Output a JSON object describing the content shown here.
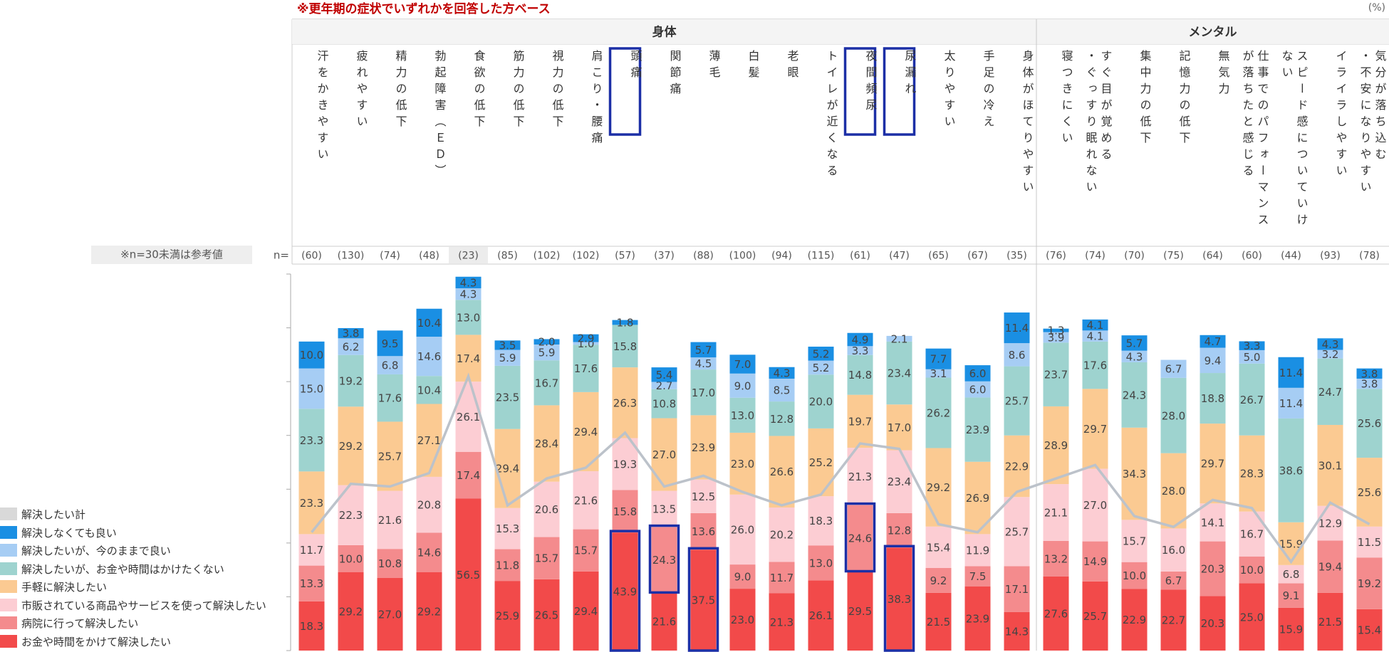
{
  "chart_data": {
    "type": "stacked_bar",
    "note": "※更年期の症状でいずれかを回答した方ベース",
    "unit": "(%)",
    "n_note": "※n=30未満は参考値",
    "n_prefix": "n=",
    "groups": [
      {
        "label": "身体",
        "categories": [
          "汗をかきやすい",
          "疲れやすい",
          "精力の低下",
          "勃起障害（ＥＤ）",
          "食欲の低下",
          "筋力の低下",
          "視力の低下",
          "肩こり・腰痛",
          "頭痛",
          "関節痛",
          "薄毛",
          "白髪",
          "老眼",
          "トイレが近くなる",
          "夜間頻尿",
          "尿漏れ",
          "太りやすい",
          "手足の冷え",
          "身体がほてりやすい"
        ],
        "n_labels": [
          "(60)",
          "(130)",
          "(74)",
          "(48)",
          "(23)",
          "(85)",
          "(102)",
          "(102)",
          "(57)",
          "(37)",
          "(88)",
          "(100)",
          "(94)",
          "(115)",
          "(61)",
          "(47)",
          "(65)",
          "(67)",
          "(35)"
        ]
      },
      {
        "label": "メンタル",
        "categories": [
          "寝つきにくい",
          "すぐ目が覚める・ぐっすり眠れない",
          "集中力の低下",
          "記憶力の低下",
          "無気力",
          "仕事でのパフォーマンスが落ちたと感じる",
          "スピード感についていけない",
          "イライラしやすい",
          "気分が落ち込む・不安になりやすい"
        ],
        "n_labels": [
          "(76)",
          "(74)",
          "(70)",
          "(75)",
          "(64)",
          "(60)",
          "(44)",
          "(93)",
          "(78)"
        ]
      }
    ],
    "series": [
      {
        "name": "お金や時間をかけて解決したい",
        "color": "#f24a4a",
        "values": [
          18.3,
          29.2,
          27.0,
          29.2,
          56.5,
          25.9,
          26.5,
          29.4,
          43.9,
          21.6,
          37.5,
          23.0,
          21.3,
          26.1,
          29.5,
          38.3,
          21.5,
          23.9,
          14.3,
          27.6,
          25.7,
          22.9,
          22.7,
          20.3,
          25.0,
          15.9,
          21.5,
          15.4
        ],
        "value_labels": [
          "18.3",
          "29.2",
          "27.0",
          "29.2",
          "56.5",
          "25.9",
          "26.5",
          "29.4",
          "43.9",
          "21.6",
          "37.5",
          "23.0",
          "21.3",
          "26.1",
          "29.5",
          "38.3",
          "21.5",
          "23.9",
          "14.3",
          "27.6",
          "25.7",
          "22.9",
          "22.7",
          "20.3",
          "25.0",
          "15.9",
          "21.5",
          "15.4"
        ]
      },
      {
        "name": "病院に行って解決したい",
        "color": "#f48b8d",
        "values": [
          13.3,
          10.0,
          10.8,
          14.6,
          17.4,
          11.8,
          15.7,
          15.7,
          15.8,
          24.3,
          13.6,
          9.0,
          11.7,
          13.0,
          24.6,
          12.8,
          9.2,
          7.5,
          17.1,
          13.2,
          14.9,
          10.0,
          6.7,
          20.3,
          10.0,
          9.1,
          19.4,
          19.2
        ],
        "value_labels": [
          "13.3",
          "10.0",
          "10.8",
          "14.6",
          "17.4",
          "11.8",
          "15.7",
          "15.7",
          "15.8",
          "24.3",
          "13.6",
          "9.0",
          "11.7",
          "13.0",
          "24.6",
          "12.8",
          "9.2",
          "7.5",
          "17.1",
          "13.2",
          "14.9",
          "10.0",
          "6.7",
          "20.3",
          "10.0",
          "9.1",
          "19.4",
          "19.2"
        ]
      },
      {
        "name": "市販されている商品やサービスを使って解決したい",
        "color": "#fccdd3",
        "values": [
          11.7,
          22.3,
          21.6,
          20.8,
          26.1,
          15.3,
          20.6,
          21.6,
          19.3,
          13.5,
          12.5,
          26.0,
          20.2,
          18.3,
          21.3,
          23.4,
          15.4,
          11.9,
          25.7,
          21.1,
          27.0,
          15.7,
          16.0,
          14.1,
          16.7,
          6.8,
          12.9,
          11.5
        ],
        "value_labels": [
          "11.7",
          "22.3",
          "21.6",
          "20.8",
          "26.1",
          "15.3",
          "20.6",
          "21.6",
          "19.3",
          "13.5",
          "12.5",
          "26.0",
          "20.2",
          "18.3",
          "21.3",
          "23.4",
          "15.4",
          "11.9",
          "25.7",
          "21.1",
          "27.0",
          "15.7",
          "16.0",
          "14.1",
          "16.7",
          "6.8",
          "12.9",
          "11.5"
        ]
      },
      {
        "name": "手軽に解決したい",
        "color": "#fbca92",
        "values": [
          23.3,
          29.2,
          25.7,
          27.1,
          17.4,
          29.4,
          28.4,
          29.4,
          26.3,
          27.0,
          23.9,
          23.0,
          26.6,
          25.2,
          19.7,
          17.0,
          29.2,
          26.9,
          22.9,
          28.9,
          29.7,
          34.3,
          28.0,
          29.7,
          28.3,
          15.9,
          30.1,
          25.6
        ],
        "value_labels": [
          "23.3",
          "29.2",
          "25.7",
          "27.1",
          "17.4",
          "29.4",
          "28.4",
          "29.4",
          "26.3",
          "27.0",
          "23.9",
          "23.0",
          "26.6",
          "25.2",
          "19.7",
          "17.0",
          "29.2",
          "26.9",
          "22.9",
          "28.9",
          "29.7",
          "34.3",
          "28.0",
          "29.7",
          "28.3",
          "15.9",
          "30.1",
          "25.6"
        ]
      },
      {
        "name": "解決したいが、お金や時間はかけたくない",
        "color": "#9ed3cf",
        "values": [
          23.3,
          19.2,
          17.6,
          10.4,
          13.0,
          23.5,
          16.7,
          17.6,
          15.8,
          10.8,
          17.0,
          13.0,
          12.8,
          20.0,
          14.8,
          23.4,
          26.2,
          23.9,
          25.7,
          23.7,
          17.6,
          24.3,
          28.0,
          18.8,
          26.7,
          38.6,
          24.7,
          25.6
        ],
        "value_labels": [
          "23.3",
          "19.2",
          "17.6",
          "10.4",
          "13.0",
          "23.5",
          "16.7",
          "17.6",
          "15.8",
          "10.8",
          "17.0",
          "13.0",
          "12.8",
          "20.0",
          "14.8",
          "23.4",
          "26.2",
          "23.9",
          "25.7",
          "23.7",
          "17.6",
          "24.3",
          "28.0",
          "18.8",
          "26.7",
          "38.6",
          "24.7",
          "25.6"
        ]
      },
      {
        "name": "解決したいが、今のままで良い",
        "color": "#a6cdf4",
        "values": [
          15.0,
          6.2,
          6.8,
          14.6,
          4.3,
          5.9,
          5.9,
          1.0,
          null,
          2.7,
          4.5,
          9.0,
          8.5,
          5.2,
          3.3,
          2.1,
          3.1,
          6.0,
          8.6,
          3.9,
          4.1,
          4.3,
          6.7,
          9.4,
          5.0,
          11.4,
          3.2,
          3.8
        ],
        "value_labels": [
          "15.0",
          "6.2",
          "6.8",
          "14.6",
          "4.3",
          "5.9",
          "5.9",
          "1.0",
          null,
          "2.7",
          "4.5",
          "9.0",
          "8.5",
          "5.2",
          "3.3",
          "2.1",
          "3.1",
          "6.0",
          "8.6",
          "3.9",
          "4.1",
          "4.3",
          "6.7",
          "9.4",
          "5.0",
          "11.4",
          "3.2",
          "3.8"
        ]
      },
      {
        "name": "解決しなくても良い",
        "color": "#1a8fe3",
        "values": [
          10.0,
          3.8,
          9.5,
          10.4,
          4.3,
          3.5,
          2.0,
          2.9,
          1.8,
          5.4,
          5.7,
          7.0,
          4.3,
          5.2,
          4.9,
          null,
          7.7,
          6.0,
          11.4,
          1.3,
          4.1,
          5.7,
          null,
          4.7,
          3.3,
          11.4,
          4.3,
          3.8
        ],
        "value_labels": [
          "10.0",
          "3.8",
          "9.5",
          "10.4",
          "4.3",
          "3.5",
          "2.0",
          "2.9",
          "1.8",
          "5.4",
          "5.7",
          "7.0",
          "4.3",
          "5.2",
          "4.9",
          null,
          "7.7",
          "6.0",
          "11.4",
          "1.3",
          "4.1",
          "5.7",
          null,
          "4.7",
          "3.3",
          "11.4",
          "4.3",
          "3.8"
        ]
      }
    ],
    "line": {
      "name": "解決したい計",
      "color": "#bcc2ca",
      "values": [
        44,
        62,
        61,
        66,
        102,
        54,
        64,
        68,
        81,
        61,
        65,
        59,
        54,
        58,
        77,
        75,
        47,
        44,
        59,
        64,
        69,
        50,
        46,
        56,
        53,
        33,
        55,
        47
      ]
    },
    "ylim": [
      0,
      140
    ],
    "yticks": [
      0,
      20,
      40,
      60,
      80,
      100,
      120,
      140
    ]
  }
}
